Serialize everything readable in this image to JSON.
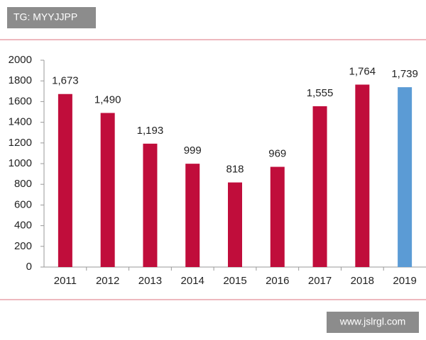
{
  "watermarks": [
    "TG: MYYJJPP",
    "www.jslrgl.com"
  ],
  "chart_data": {
    "type": "bar",
    "categories": [
      "2011",
      "2012",
      "2013",
      "2014",
      "2015",
      "2016",
      "2017",
      "2018",
      "2019"
    ],
    "values": [
      1673,
      1490,
      1193,
      999,
      818,
      969,
      1555,
      1764,
      1739
    ],
    "value_labels": [
      "1,673",
      "1,490",
      "1,193",
      "999",
      "818",
      "969",
      "1,555",
      "1,764",
      "1,739"
    ],
    "colors": [
      "#c00d3b",
      "#c00d3b",
      "#c00d3b",
      "#c00d3b",
      "#c00d3b",
      "#c00d3b",
      "#c00d3b",
      "#c00d3b",
      "#5b9bd5"
    ],
    "ylim": [
      0,
      2000
    ],
    "yticks": [
      0,
      200,
      400,
      600,
      800,
      1000,
      1200,
      1400,
      1600,
      1800,
      2000
    ],
    "grid": false
  }
}
